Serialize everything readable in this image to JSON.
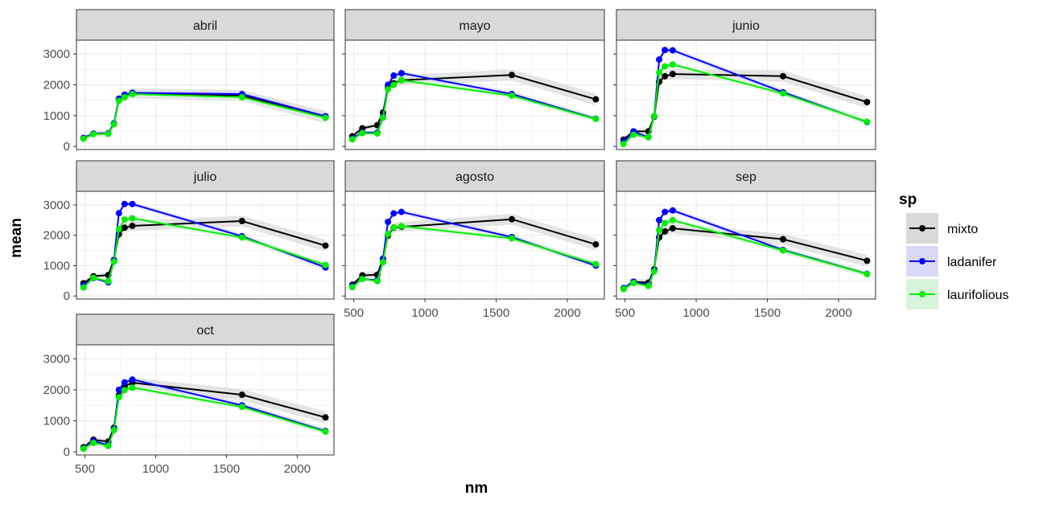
{
  "chart_data": {
    "type": "line",
    "xlabel": "nm",
    "ylabel": "mean",
    "xlim": [
      440,
      2260
    ],
    "ylim": [
      -100,
      3450
    ],
    "x_ticks": [
      "500",
      "1000",
      "1500",
      "2000"
    ],
    "y_ticks": [
      "0",
      "1000",
      "2000",
      "3000"
    ],
    "legend": {
      "title": "sp",
      "position": "right"
    },
    "series_styles": [
      {
        "name": "mixto",
        "color": "#000000",
        "band": "#d9d9d9"
      },
      {
        "name": "ladanifer",
        "color": "#0000ff",
        "band": "#d9d9f5"
      },
      {
        "name": "laurifolious",
        "color": "#00ee00",
        "band": "#d9f5d9"
      }
    ],
    "panels": [
      {
        "name": "abril",
        "x": [
          490,
          560,
          665,
          705,
          740,
          780,
          835,
          1610,
          2200
        ],
        "series": [
          {
            "name": "mixto",
            "values": [
              260,
              410,
              420,
              730,
              1500,
              1620,
              1730,
              1650,
              950
            ]
          },
          {
            "name": "ladanifer",
            "values": [
              280,
              420,
              430,
              750,
              1550,
              1680,
              1740,
              1700,
              980
            ]
          },
          {
            "name": "laurifolious",
            "values": [
              250,
              400,
              410,
              720,
              1480,
              1600,
              1700,
              1600,
              930
            ]
          }
        ]
      },
      {
        "name": "mayo",
        "x": [
          490,
          560,
          665,
          705,
          740,
          780,
          835,
          1610,
          2200
        ],
        "series": [
          {
            "name": "mixto",
            "values": [
              330,
              590,
              690,
              1100,
              1900,
              2050,
              2150,
              2320,
              1530
            ]
          },
          {
            "name": "ladanifer",
            "values": [
              260,
              450,
              450,
              960,
              2000,
              2300,
              2380,
              1700,
              900
            ]
          },
          {
            "name": "laurifolious",
            "values": [
              230,
              430,
              420,
              930,
              1850,
              2000,
              2150,
              1650,
              890
            ]
          }
        ]
      },
      {
        "name": "junio",
        "x": [
          490,
          560,
          665,
          705,
          740,
          780,
          835,
          1610,
          2200
        ],
        "series": [
          {
            "name": "mixto",
            "values": [
              220,
              490,
              490,
              960,
              2100,
              2280,
              2350,
              2280,
              1440
            ]
          },
          {
            "name": "ladanifer",
            "values": [
              150,
              480,
              300,
              980,
              2820,
              3130,
              3120,
              1760,
              790
            ]
          },
          {
            "name": "laurifolious",
            "values": [
              80,
              380,
              300,
              980,
              2400,
              2600,
              2660,
              1720,
              800
            ]
          }
        ]
      },
      {
        "name": "julio",
        "x": [
          490,
          560,
          665,
          705,
          740,
          780,
          835,
          1610,
          2200
        ],
        "series": [
          {
            "name": "mixto",
            "values": [
              420,
              650,
              690,
              1190,
              2030,
              2250,
              2310,
              2470,
              1660
            ]
          },
          {
            "name": "ladanifer",
            "values": [
              350,
              590,
              450,
              1180,
              2730,
              3030,
              3030,
              1970,
              940
            ]
          },
          {
            "name": "laurifolious",
            "values": [
              280,
              600,
              480,
              1130,
              2200,
              2520,
              2560,
              1930,
              1020
            ]
          }
        ]
      },
      {
        "name": "agosto",
        "x": [
          490,
          560,
          665,
          705,
          740,
          780,
          835,
          1610,
          2200
        ],
        "series": [
          {
            "name": "mixto",
            "values": [
              370,
              680,
              700,
              1230,
              1990,
              2250,
              2280,
              2530,
              1700
            ]
          },
          {
            "name": "ladanifer",
            "values": [
              330,
              560,
              520,
              1220,
              2440,
              2720,
              2770,
              1940,
              1000
            ]
          },
          {
            "name": "laurifolious",
            "values": [
              290,
              560,
              490,
              1110,
              2040,
              2260,
              2300,
              1900,
              1050
            ]
          }
        ]
      },
      {
        "name": "sep",
        "x": [
          490,
          560,
          665,
          705,
          740,
          780,
          835,
          1610,
          2200
        ],
        "series": [
          {
            "name": "mixto",
            "values": [
              240,
              470,
              440,
              880,
              1930,
              2130,
              2230,
              1870,
              1160
            ]
          },
          {
            "name": "ladanifer",
            "values": [
              260,
              470,
              360,
              850,
              2500,
              2770,
              2820,
              1520,
              730
            ]
          },
          {
            "name": "laurifolious",
            "values": [
              230,
              430,
              330,
              810,
              2170,
              2400,
              2500,
              1500,
              720
            ]
          }
        ]
      },
      {
        "name": "oct",
        "x": [
          490,
          560,
          665,
          705,
          740,
          780,
          835,
          1610,
          2200
        ],
        "series": [
          {
            "name": "mixto",
            "values": [
              150,
              390,
              330,
              780,
              1830,
              2110,
              2230,
              1840,
              1110
            ]
          },
          {
            "name": "ladanifer",
            "values": [
              110,
              350,
              220,
              740,
              2000,
              2240,
              2330,
              1500,
              670
            ]
          },
          {
            "name": "laurifolious",
            "values": [
              100,
              290,
              190,
              700,
              1760,
              1990,
              2070,
              1450,
              650
            ]
          }
        ]
      }
    ]
  }
}
